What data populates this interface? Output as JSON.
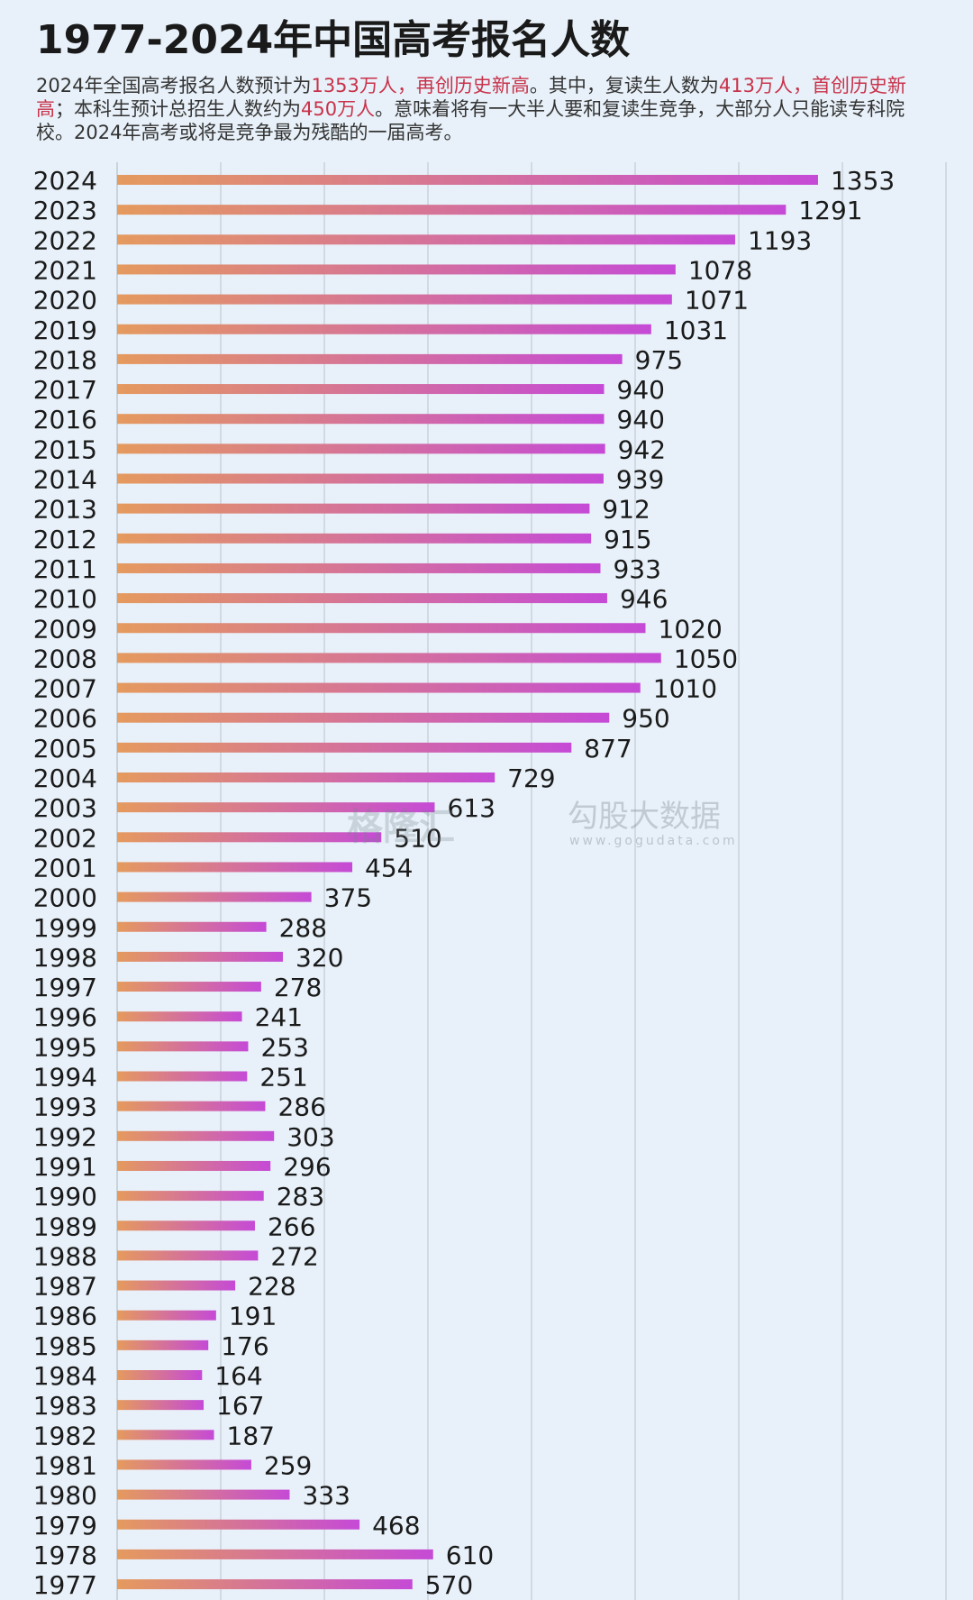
{
  "title": "1977-2024年中国高考报名人数",
  "subtitle": {
    "p1": "2024年全国高考报名人数预计为",
    "h1": "1353万人，再创历史新高",
    "p2": "。其中，复读生人数为",
    "h2": "413万人，首创历史新高",
    "p3": "；本科生预计总招生人数约为",
    "h3": "450万人",
    "p4": "。意味着将有一大半人要和复读生竞争，大部分人只能读专科院校。2024年高考或将是竞争最为残酷的一届高考。"
  },
  "watermark": {
    "logo": "格隆汇",
    "brand": "勾股大数据",
    "url": "www.gogudata.com"
  },
  "colors": {
    "background": "#e8f1f9",
    "bar_start": "#e59a5e",
    "bar_end": "#c54ad6",
    "highlight": "#c8324a",
    "gridline": "#c9d3dc"
  },
  "chart_data": {
    "type": "bar",
    "orientation": "horizontal",
    "grid": true,
    "categories": [
      "2024",
      "2023",
      "2022",
      "2021",
      "2020",
      "2019",
      "2018",
      "2017",
      "2016",
      "2015",
      "2014",
      "2013",
      "2012",
      "2011",
      "2010",
      "2009",
      "2008",
      "2007",
      "2006",
      "2005",
      "2004",
      "2003",
      "2002",
      "2001",
      "2000",
      "1999",
      "1998",
      "1997",
      "1996",
      "1995",
      "1994",
      "1993",
      "1992",
      "1991",
      "1990",
      "1989",
      "1988",
      "1987",
      "1986",
      "1985",
      "1984",
      "1983",
      "1982",
      "1981",
      "1980",
      "1979",
      "1978",
      "1977"
    ],
    "values": [
      1353,
      1291,
      1193,
      1078,
      1071,
      1031,
      975,
      940,
      940,
      942,
      939,
      912,
      915,
      933,
      946,
      1020,
      1050,
      1010,
      950,
      877,
      729,
      613,
      510,
      454,
      375,
      288,
      320,
      278,
      241,
      253,
      251,
      286,
      303,
      296,
      283,
      266,
      272,
      228,
      191,
      176,
      164,
      167,
      187,
      259,
      333,
      468,
      610,
      570
    ],
    "xlim": [
      0,
      1600
    ]
  }
}
